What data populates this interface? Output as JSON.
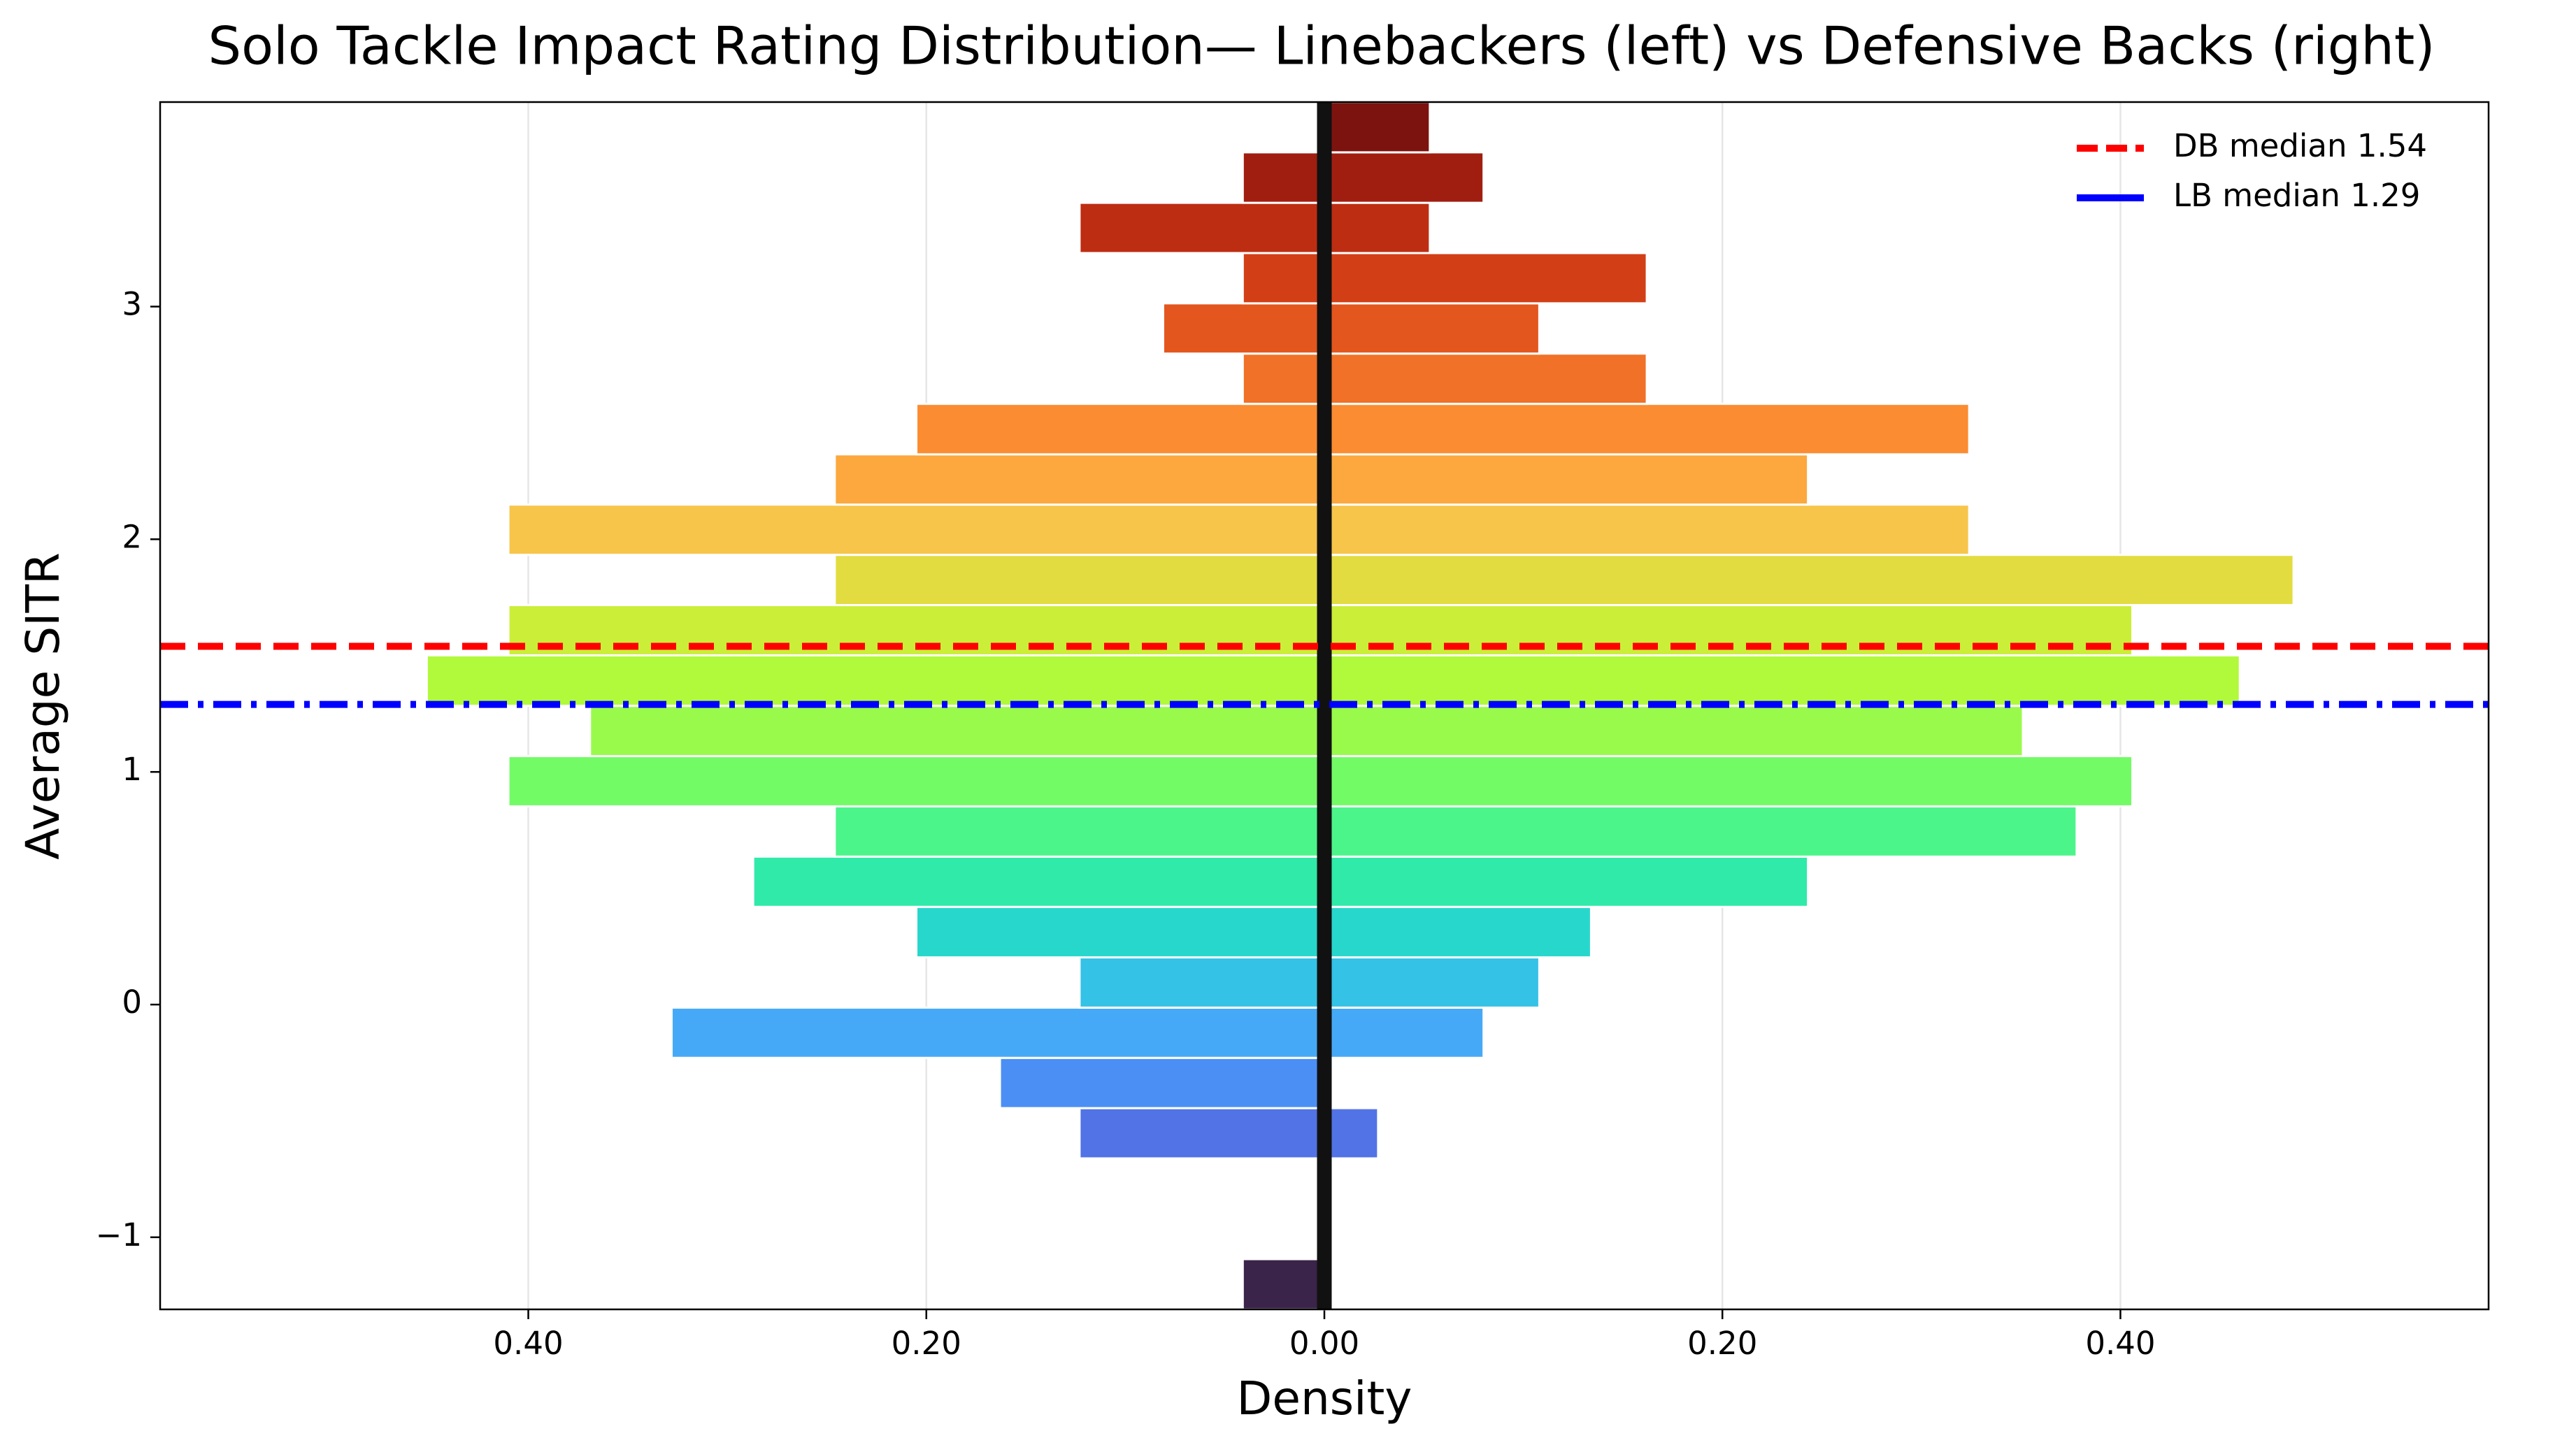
{
  "chart_data": {
    "type": "histogram",
    "title": "Solo Tackle Impact Rating Distribution— Linebackers (left) vs Defensive Backs (right)",
    "x_label": "Density",
    "y_label": "Average SITR",
    "orientation": "horizontal",
    "bins": [
      -1.31,
      -1.094,
      -0.877,
      -0.661,
      -0.445,
      -0.229,
      -0.013,
      0.203,
      0.42,
      0.636,
      0.852,
      1.068,
      1.284,
      1.501,
      1.717,
      1.933,
      2.149,
      2.365,
      2.582,
      2.798,
      3.014,
      3.23,
      3.446,
      3.663,
      3.879
    ],
    "colors": [
      "#3a2449",
      null,
      null,
      "#5273e6",
      "#4b8ff5",
      "#46a9f7",
      "#34c2e6",
      "#27d7cc",
      "#2feaa9",
      "#4cf58a",
      "#73fb66",
      "#99fa4c",
      "#b1f93b",
      "#cbee38",
      "#e2dc40",
      "#f6c54a",
      "#fca83e",
      "#fb8c31",
      "#f07127",
      "#e3561e",
      "#d23f16",
      "#bd2d12",
      "#a01e10",
      "#7d130f"
    ],
    "series": [
      {
        "side": "left",
        "values": [
          0.041,
          0,
          0,
          0.123,
          0.163,
          0.328,
          0.123,
          0.205,
          0.287,
          0.246,
          0.41,
          0.369,
          0.451,
          0.41,
          0.246,
          0.41,
          0.246,
          0.205,
          0.041,
          0.081,
          0.041,
          0.123,
          0.041,
          0
        ]
      },
      {
        "side": "right",
        "values": [
          0,
          0,
          0,
          0.027,
          0,
          0.08,
          0.108,
          0.134,
          0.243,
          0.378,
          0.406,
          0.351,
          0.46,
          0.406,
          0.487,
          0.324,
          0.243,
          0.324,
          0.162,
          0.108,
          0.162,
          0.053,
          0.08,
          0.053
        ]
      }
    ],
    "hlines": [
      {
        "label": "DB median 1.54",
        "value": 1.54,
        "color": "#ff0000",
        "style": "dashed"
      },
      {
        "label": "LB median 1.29",
        "value": 1.29,
        "color": "#0000ff",
        "style": "dashdot"
      }
    ],
    "legend": "upper right",
    "grid": "x",
    "xlim": [
      -0.585,
      0.585
    ],
    "ylim": [
      -1.31,
      3.879
    ],
    "xticks": [
      {
        "value": -0.4,
        "label": "0.40"
      },
      {
        "value": -0.2,
        "label": "0.20"
      },
      {
        "value": 0,
        "label": "0.00"
      },
      {
        "value": 0.2,
        "label": "0.20"
      },
      {
        "value": 0.4,
        "label": "0.40"
      }
    ],
    "yticks": [
      {
        "value": -1,
        "label": "−1"
      },
      0,
      1,
      2,
      3
    ]
  }
}
